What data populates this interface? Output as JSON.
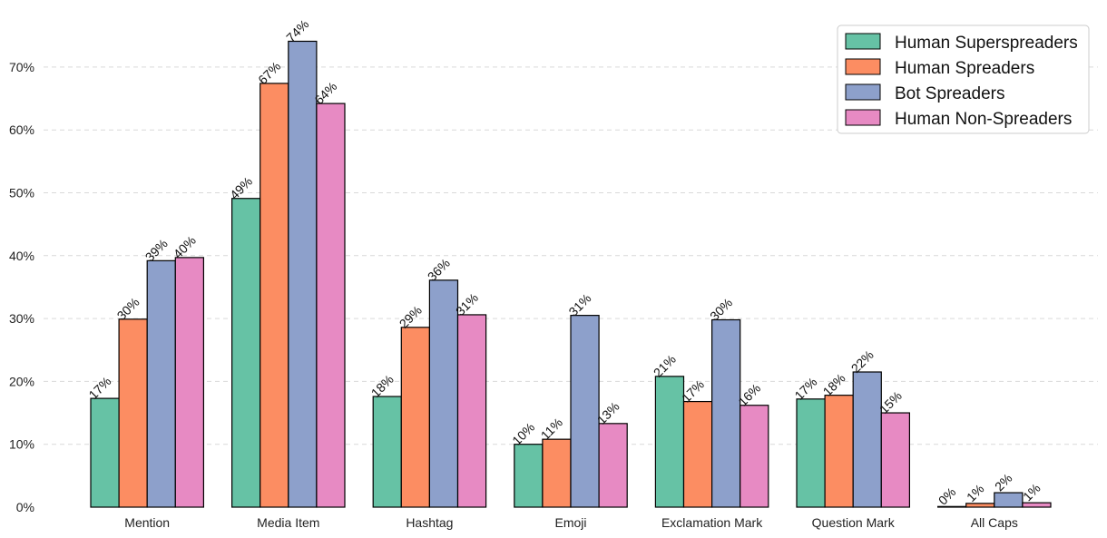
{
  "chart_data": {
    "type": "bar",
    "title": "",
    "xlabel": "",
    "ylabel": "",
    "ylim": [
      0,
      78
    ],
    "yticks": [
      0,
      10,
      20,
      30,
      40,
      50,
      60,
      70
    ],
    "ytick_labels": [
      "0%",
      "10%",
      "20%",
      "30%",
      "40%",
      "50%",
      "60%",
      "70%"
    ],
    "grid": true,
    "legend_position": "top-right",
    "categories": [
      "Mention",
      "Media Item",
      "Hashtag",
      "Emoji",
      "Exclamation Mark",
      "Question Mark",
      "All Caps"
    ],
    "series": [
      {
        "name": "Human Superspreaders",
        "color": "#66c2a5",
        "values": [
          17.3,
          49.1,
          17.6,
          10.0,
          20.8,
          17.2,
          0.1
        ],
        "labels": [
          "17%",
          "49%",
          "18%",
          "10%",
          "21%",
          "17%",
          "0%"
        ]
      },
      {
        "name": "Human Spreaders",
        "color": "#fc8d62",
        "values": [
          29.9,
          67.4,
          28.6,
          10.8,
          16.8,
          17.8,
          0.6
        ],
        "labels": [
          "30%",
          "67%",
          "29%",
          "11%",
          "17%",
          "18%",
          "1%"
        ]
      },
      {
        "name": "Bot Spreaders",
        "color": "#8da0cb",
        "values": [
          39.2,
          74.1,
          36.1,
          30.5,
          29.8,
          21.5,
          2.3
        ],
        "labels": [
          "39%",
          "74%",
          "36%",
          "31%",
          "30%",
          "22%",
          "2%"
        ]
      },
      {
        "name": "Human Non-Spreaders",
        "color": "#e78ac3",
        "values": [
          39.7,
          64.2,
          30.6,
          13.3,
          16.2,
          15.0,
          0.7
        ],
        "labels": [
          "40%",
          "64%",
          "31%",
          "13%",
          "16%",
          "15%",
          "1%"
        ]
      }
    ]
  }
}
